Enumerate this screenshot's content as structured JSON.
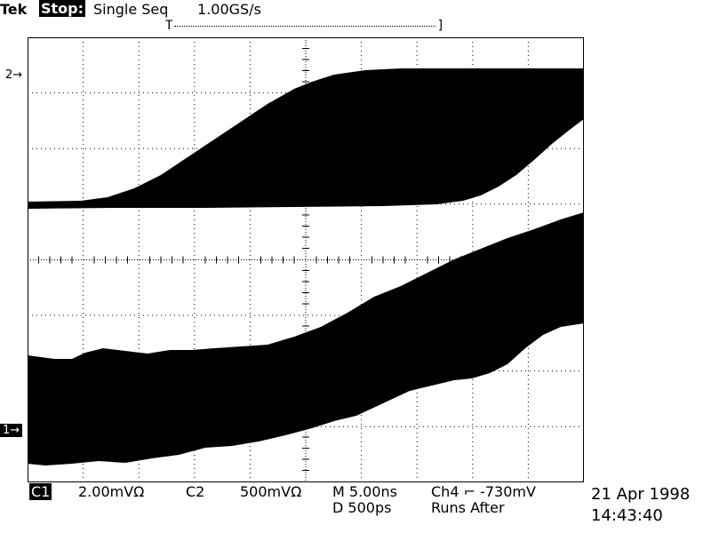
{
  "header": {
    "brand": "Tek",
    "state": "Stop:",
    "mode": "Single Seq",
    "sample_rate": "1.00GS/s"
  },
  "record_bar": {
    "left": "T",
    "right": "]"
  },
  "markers": {
    "ch2": "2→",
    "ch1": "1→"
  },
  "readout": {
    "ch1_label": "C1",
    "ch1_scale": "2.00mVΩ",
    "ch2_label": "C2",
    "ch2_scale": "500mVΩ",
    "timebase": "M 5.00ns",
    "trigger": "Ch4 ⌐  -730mV",
    "delay": "D  500ps",
    "runs_after": "Runs After",
    "date": "21 Apr 1998",
    "time": "14:43:40"
  },
  "colors": {
    "trace": "#000000",
    "background": "#ffffff"
  }
}
